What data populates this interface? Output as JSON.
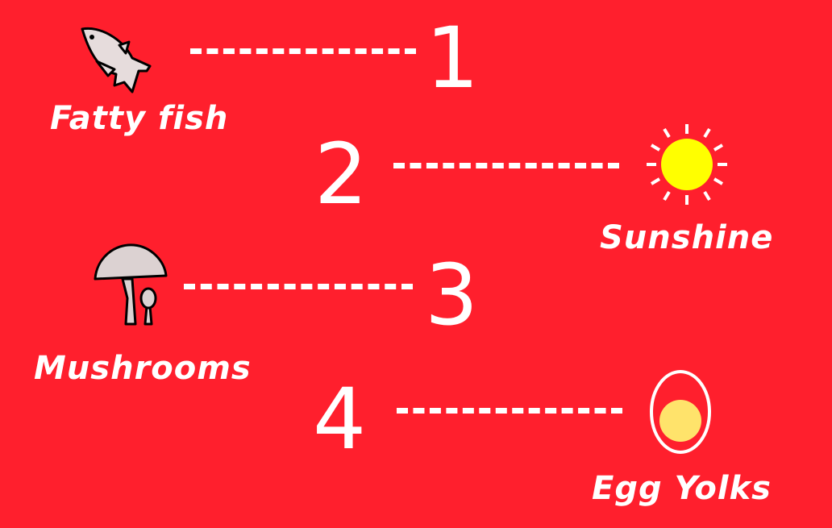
{
  "items": [
    {
      "number": "1",
      "label": "Fatty fish",
      "icon": "fish-icon"
    },
    {
      "number": "2",
      "label": "Sunshine",
      "icon": "sun-icon"
    },
    {
      "number": "3",
      "label": "Mushrooms",
      "icon": "mushroom-icon"
    },
    {
      "number": "4",
      "label": "Egg Yolks",
      "icon": "egg-yolk-icon"
    }
  ],
  "colors": {
    "background": "#ff1f2d",
    "text": "#ffffff",
    "sun": "#ffff00",
    "yolk": "#ffe36b",
    "icon_fill": "#e6dcdc"
  }
}
